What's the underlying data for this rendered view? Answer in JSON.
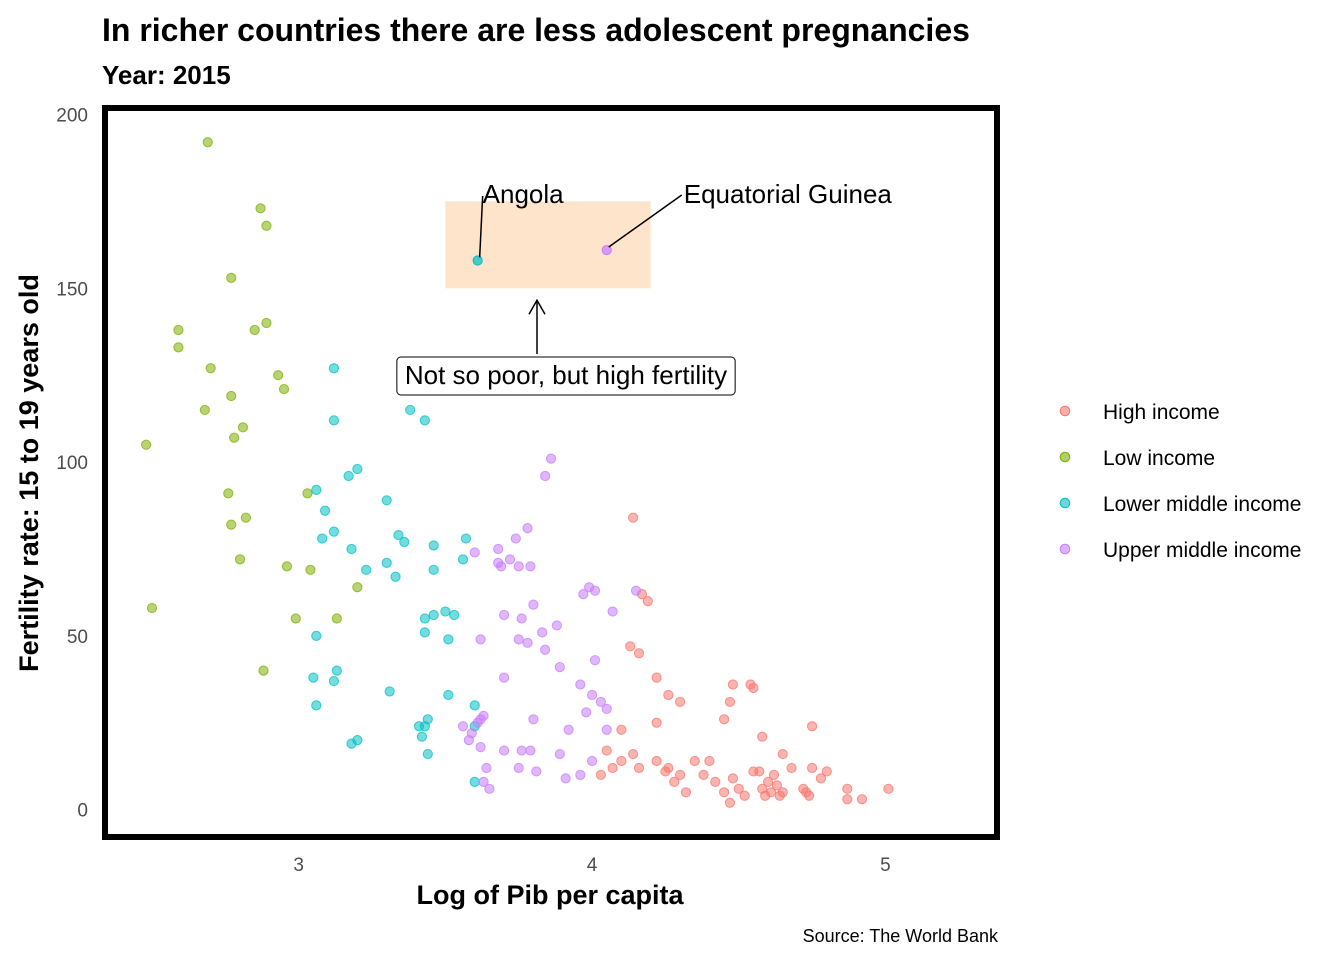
{
  "chart_data": {
    "type": "scatter",
    "title": "In richer countries there are less adolescent pregnancies",
    "subtitle": "Year: 2015",
    "xlabel": "Log of Pib per capita",
    "ylabel": "Fertility rate: 15 to 19 years old",
    "caption": "Source: The World Bank",
    "xlim": [
      2.35,
      5.37
    ],
    "ylim": [
      -7,
      201
    ],
    "x_ticks": [
      3,
      4,
      5
    ],
    "y_ticks": [
      0,
      50,
      100,
      150,
      200
    ],
    "grid": false,
    "legend_position": "right",
    "series": [
      {
        "name": "High income",
        "color": "#F8766D",
        "points": [
          [
            4.14,
            84
          ],
          [
            4.13,
            47
          ],
          [
            4.16,
            45
          ],
          [
            4.17,
            62
          ],
          [
            4.19,
            60
          ],
          [
            4.22,
            38
          ],
          [
            4.26,
            33
          ],
          [
            4.3,
            31
          ],
          [
            4.45,
            26
          ],
          [
            4.48,
            36
          ],
          [
            4.47,
            31
          ],
          [
            4.54,
            36
          ],
          [
            4.55,
            35
          ],
          [
            4.58,
            21
          ],
          [
            4.65,
            16
          ],
          [
            4.75,
            24
          ],
          [
            4.22,
            25
          ],
          [
            4.1,
            23
          ],
          [
            4.05,
            17
          ],
          [
            4.03,
            10
          ],
          [
            4.07,
            12
          ],
          [
            4.1,
            14
          ],
          [
            4.14,
            16
          ],
          [
            4.16,
            12
          ],
          [
            4.22,
            14
          ],
          [
            4.25,
            11
          ],
          [
            4.26,
            12
          ],
          [
            4.28,
            8
          ],
          [
            4.3,
            10
          ],
          [
            4.32,
            5
          ],
          [
            4.35,
            14
          ],
          [
            4.38,
            10
          ],
          [
            4.4,
            14
          ],
          [
            4.42,
            8
          ],
          [
            4.45,
            5
          ],
          [
            4.47,
            2
          ],
          [
            4.48,
            9
          ],
          [
            4.5,
            6
          ],
          [
            4.52,
            4
          ],
          [
            4.55,
            11
          ],
          [
            4.57,
            11
          ],
          [
            4.58,
            6
          ],
          [
            4.59,
            4
          ],
          [
            4.6,
            8
          ],
          [
            4.61,
            5
          ],
          [
            4.62,
            10
          ],
          [
            4.63,
            7
          ],
          [
            4.64,
            4
          ],
          [
            4.65,
            5
          ],
          [
            4.68,
            12
          ],
          [
            4.72,
            6
          ],
          [
            4.73,
            5
          ],
          [
            4.74,
            4
          ],
          [
            4.75,
            12
          ],
          [
            4.78,
            9
          ],
          [
            4.8,
            11
          ],
          [
            4.87,
            6
          ],
          [
            4.87,
            3
          ],
          [
            4.92,
            3
          ],
          [
            5.01,
            6
          ]
        ]
      },
      {
        "name": "Low income",
        "color": "#7CAE00",
        "points": [
          [
            2.69,
            192
          ],
          [
            2.87,
            173
          ],
          [
            2.89,
            168
          ],
          [
            2.77,
            153
          ],
          [
            2.59,
            138
          ],
          [
            2.59,
            133
          ],
          [
            2.89,
            140
          ],
          [
            2.85,
            138
          ],
          [
            2.7,
            127
          ],
          [
            2.93,
            125
          ],
          [
            2.95,
            121
          ],
          [
            2.77,
            119
          ],
          [
            2.68,
            115
          ],
          [
            2.81,
            110
          ],
          [
            2.78,
            107
          ],
          [
            2.48,
            105
          ],
          [
            2.76,
            91
          ],
          [
            2.77,
            82
          ],
          [
            2.82,
            84
          ],
          [
            3.03,
            91
          ],
          [
            2.8,
            72
          ],
          [
            2.96,
            70
          ],
          [
            3.04,
            69
          ],
          [
            3.2,
            64
          ],
          [
            2.5,
            58
          ],
          [
            2.99,
            55
          ],
          [
            3.13,
            55
          ],
          [
            2.88,
            40
          ]
        ]
      },
      {
        "name": "Lower middle income",
        "color": "#00BFC4",
        "points": [
          [
            3.12,
            127
          ],
          [
            3.38,
            115
          ],
          [
            3.43,
            112
          ],
          [
            3.12,
            112
          ],
          [
            3.2,
            98
          ],
          [
            3.17,
            96
          ],
          [
            3.06,
            92
          ],
          [
            3.09,
            86
          ],
          [
            3.3,
            89
          ],
          [
            3.12,
            80
          ],
          [
            3.08,
            78
          ],
          [
            3.34,
            79
          ],
          [
            3.36,
            77
          ],
          [
            3.46,
            76
          ],
          [
            3.57,
            78
          ],
          [
            3.18,
            75
          ],
          [
            3.56,
            72
          ],
          [
            3.3,
            71
          ],
          [
            3.23,
            69
          ],
          [
            3.46,
            69
          ],
          [
            3.33,
            67
          ],
          [
            3.43,
            55
          ],
          [
            3.46,
            56
          ],
          [
            3.5,
            57
          ],
          [
            3.53,
            56
          ],
          [
            3.43,
            51
          ],
          [
            3.51,
            49
          ],
          [
            3.06,
            50
          ],
          [
            3.13,
            40
          ],
          [
            3.05,
            38
          ],
          [
            3.12,
            37
          ],
          [
            3.31,
            34
          ],
          [
            3.51,
            33
          ],
          [
            3.6,
            30
          ],
          [
            3.06,
            30
          ],
          [
            3.44,
            26
          ],
          [
            3.41,
            24
          ],
          [
            3.43,
            24
          ],
          [
            3.6,
            24
          ],
          [
            3.2,
            20
          ],
          [
            3.18,
            19
          ],
          [
            3.42,
            21
          ],
          [
            3.44,
            16
          ],
          [
            3.6,
            8
          ]
        ]
      },
      {
        "name": "Upper middle income",
        "color": "#C77CFF",
        "points": [
          [
            3.86,
            101
          ],
          [
            3.84,
            96
          ],
          [
            3.78,
            81
          ],
          [
            3.74,
            78
          ],
          [
            3.6,
            74
          ],
          [
            3.68,
            75
          ],
          [
            3.68,
            71
          ],
          [
            3.72,
            72
          ],
          [
            3.75,
            70
          ],
          [
            3.69,
            70
          ],
          [
            3.79,
            70
          ],
          [
            3.99,
            64
          ],
          [
            3.97,
            62
          ],
          [
            4.01,
            63
          ],
          [
            4.15,
            63
          ],
          [
            4.07,
            57
          ],
          [
            3.8,
            59
          ],
          [
            3.7,
            56
          ],
          [
            3.76,
            55
          ],
          [
            3.88,
            53
          ],
          [
            3.83,
            51
          ],
          [
            3.62,
            49
          ],
          [
            3.75,
            49
          ],
          [
            3.78,
            48
          ],
          [
            3.84,
            46
          ],
          [
            3.89,
            41
          ],
          [
            4.01,
            43
          ],
          [
            3.7,
            38
          ],
          [
            3.96,
            36
          ],
          [
            4.0,
            33
          ],
          [
            4.03,
            31
          ],
          [
            4.05,
            29
          ],
          [
            3.98,
            28
          ],
          [
            3.8,
            26
          ],
          [
            3.63,
            27
          ],
          [
            3.62,
            26
          ],
          [
            3.61,
            25
          ],
          [
            3.56,
            24
          ],
          [
            3.59,
            22
          ],
          [
            4.05,
            23
          ],
          [
            3.92,
            23
          ],
          [
            3.58,
            20
          ],
          [
            3.62,
            18
          ],
          [
            3.7,
            17
          ],
          [
            3.76,
            17
          ],
          [
            3.79,
            17
          ],
          [
            3.89,
            16
          ],
          [
            4.0,
            14
          ],
          [
            3.64,
            12
          ],
          [
            3.75,
            12
          ],
          [
            3.81,
            11
          ],
          [
            3.96,
            10
          ],
          [
            3.63,
            8
          ],
          [
            3.91,
            9
          ],
          [
            3.65,
            6
          ]
        ]
      }
    ],
    "annotations": [
      {
        "label": "Angola",
        "point": [
          3.61,
          158
        ],
        "group": "Lower middle income"
      },
      {
        "label": "Equatorial Guinea",
        "point": [
          4.05,
          161
        ],
        "group": "Upper middle income"
      },
      {
        "label": "Not so poor, but high fertility",
        "highlight_x": [
          3.5,
          4.2
        ],
        "highlight_y": [
          150,
          175
        ]
      }
    ]
  }
}
